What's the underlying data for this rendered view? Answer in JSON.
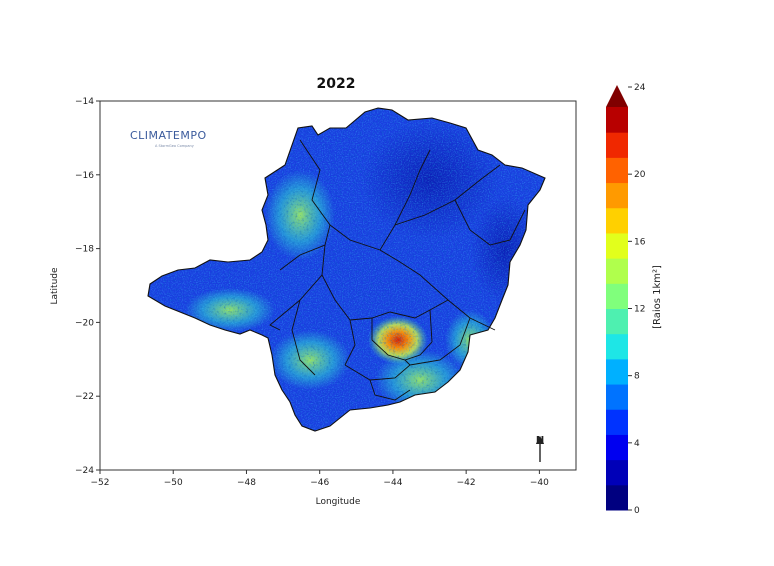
{
  "title": "2022",
  "logo": {
    "text": "CLIMATEMPO",
    "tagline": "A StormGeo Company"
  },
  "axes": {
    "xlabel": "Longitude",
    "ylabel": "Latitude",
    "xlim": [
      -52,
      -39
    ],
    "ylim": [
      -24,
      -14
    ],
    "xticks": [
      {
        "value": -52,
        "label": "−52"
      },
      {
        "value": -50,
        "label": "−50"
      },
      {
        "value": -48,
        "label": "−48"
      },
      {
        "value": -46,
        "label": "−46"
      },
      {
        "value": -44,
        "label": "−44"
      },
      {
        "value": -42,
        "label": "−42"
      },
      {
        "value": -40,
        "label": "−40"
      }
    ],
    "yticks": [
      {
        "value": -14,
        "label": "−14"
      },
      {
        "value": -16,
        "label": "−16"
      },
      {
        "value": -18,
        "label": "−18"
      },
      {
        "value": -20,
        "label": "−20"
      },
      {
        "value": -22,
        "label": "−22"
      },
      {
        "value": -24,
        "label": "−24"
      }
    ]
  },
  "north_arrow": {
    "label": "N"
  },
  "colorbar": {
    "label": "[Raios 1km²]",
    "min": 0,
    "max": 24,
    "extend": "max",
    "ticks": [
      {
        "value": 0,
        "label": "0"
      },
      {
        "value": 4,
        "label": "4"
      },
      {
        "value": 8,
        "label": "8"
      },
      {
        "value": 12,
        "label": "12"
      },
      {
        "value": 16,
        "label": "16"
      },
      {
        "value": 20,
        "label": "20"
      },
      {
        "value": 24,
        "label": "24"
      }
    ],
    "colors": [
      "#000080",
      "#0000b8",
      "#0000f0",
      "#0033ff",
      "#0073ff",
      "#00b0ff",
      "#1ee6e6",
      "#4ef0b0",
      "#80ff7c",
      "#b0ff4c",
      "#e2ff1c",
      "#ffd000",
      "#ff9a00",
      "#ff6200",
      "#f02800",
      "#b80000"
    ],
    "extend_color": "#800000"
  },
  "map_colors": {
    "base": "#1a3fe0",
    "border": "#111111"
  }
}
